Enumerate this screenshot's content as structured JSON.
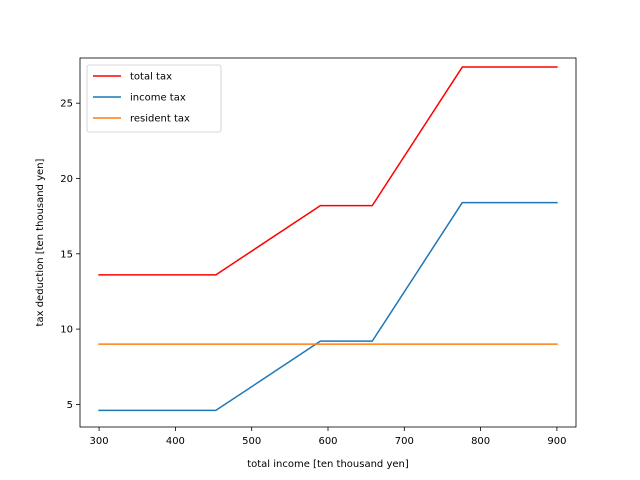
{
  "chart_data": {
    "type": "line",
    "xlabel": "total income [ten thousand yen]",
    "ylabel": "tax deduction [ten thousand yen]",
    "xlim": [
      275,
      925
    ],
    "ylim": [
      3.5,
      28.0
    ],
    "xticks": [
      300,
      400,
      500,
      600,
      700,
      800,
      900
    ],
    "yticks": [
      5,
      10,
      15,
      20,
      25
    ],
    "grid": false,
    "legend_position": "upper-left",
    "series": [
      {
        "name": "total tax",
        "color": "#ff0000",
        "x": [
          300,
          453,
          590,
          658,
          776,
          900
        ],
        "y": [
          13.6,
          13.6,
          18.2,
          18.2,
          27.4,
          27.4
        ]
      },
      {
        "name": "income tax",
        "color": "#1f77b4",
        "x": [
          300,
          453,
          590,
          658,
          776,
          900
        ],
        "y": [
          4.6,
          4.6,
          9.2,
          9.2,
          18.4,
          18.4
        ]
      },
      {
        "name": "resident tax",
        "color": "#ff7f0e",
        "x": [
          300,
          900
        ],
        "y": [
          9.0,
          9.0
        ]
      }
    ]
  }
}
